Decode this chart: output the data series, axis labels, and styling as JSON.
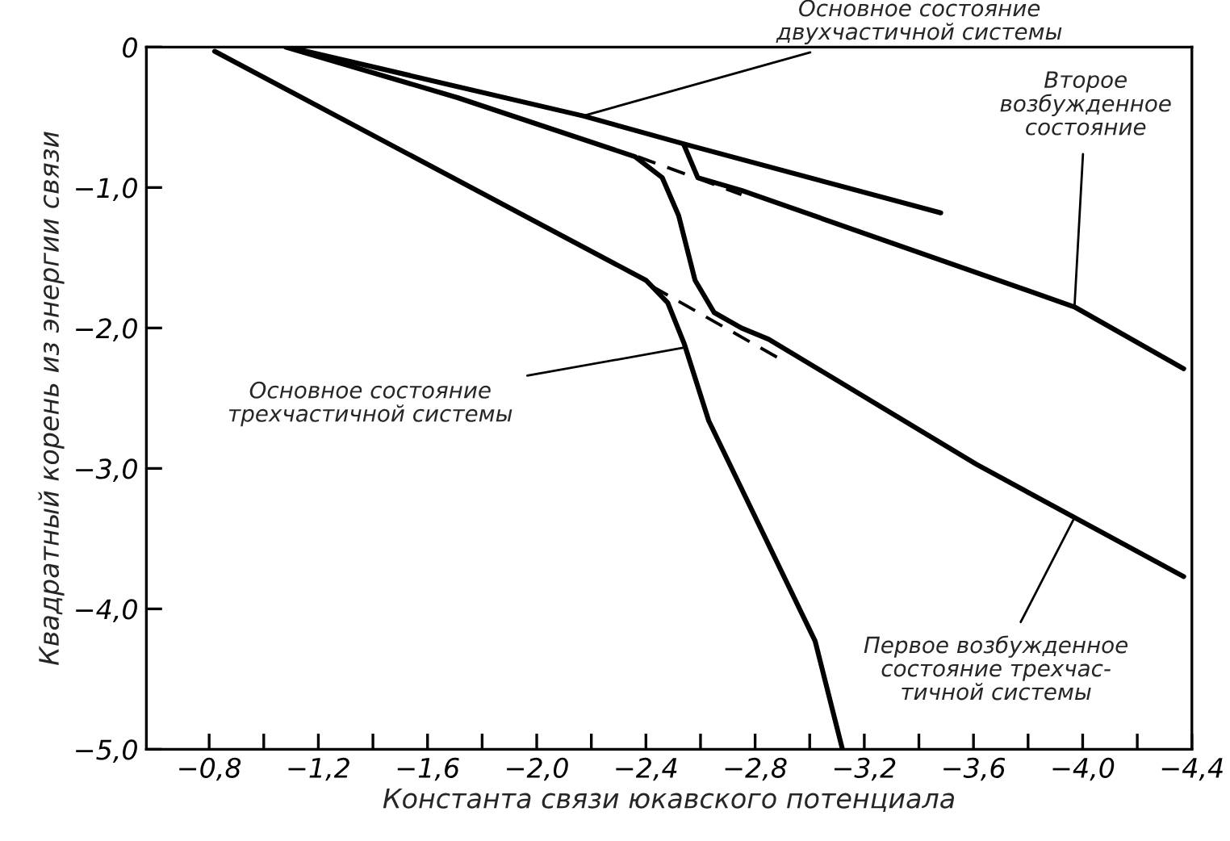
{
  "chart_data": {
    "type": "line",
    "xlabel": "Константа связи юкавского потенциала",
    "ylabel": "Квадратный корень из энергии связи",
    "xlim": [
      -0.57,
      -4.4
    ],
    "ylim": [
      -5.0,
      0
    ],
    "xticks": [
      {
        "value": -0.8,
        "label": "−0,8"
      },
      {
        "value": -1.0,
        "label": null
      },
      {
        "value": -1.2,
        "label": "−1,2"
      },
      {
        "value": -1.4,
        "label": null
      },
      {
        "value": -1.6,
        "label": "−1,6"
      },
      {
        "value": -1.8,
        "label": null
      },
      {
        "value": -2.0,
        "label": "−2,0"
      },
      {
        "value": -2.2,
        "label": null
      },
      {
        "value": -2.4,
        "label": "−2,4"
      },
      {
        "value": -2.6,
        "label": null
      },
      {
        "value": -2.8,
        "label": "−2,8"
      },
      {
        "value": -3.0,
        "label": null
      },
      {
        "value": -3.2,
        "label": "−3,2"
      },
      {
        "value": -3.4,
        "label": null
      },
      {
        "value": -3.6,
        "label": "−3,6"
      },
      {
        "value": -3.8,
        "label": null
      },
      {
        "value": -4.0,
        "label": "−4,0"
      },
      {
        "value": -4.2,
        "label": null
      },
      {
        "value": -4.4,
        "label": "−4,4"
      }
    ],
    "yticks": [
      {
        "value": 0,
        "label": "0"
      },
      {
        "value": -1,
        "label": "−1,0"
      },
      {
        "value": -2,
        "label": "−2,0"
      },
      {
        "value": -3,
        "label": "−3,0"
      },
      {
        "value": -4,
        "label": "−4,0"
      },
      {
        "value": -5,
        "label": "−5,0"
      }
    ],
    "grid": false,
    "legend": false,
    "marker": "none",
    "series": [
      {
        "color": "#000000",
        "line_style": "solid",
        "x": [
          -0.82,
          -2.4,
          -2.48,
          -2.54,
          -2.63,
          -3.02,
          -3.12
        ],
        "values": [
          -0.03,
          -1.66,
          -1.82,
          -2.11,
          -2.66,
          -4.23,
          -5.0
        ]
      },
      {
        "color": "#000000",
        "line_style": "solid",
        "x": [
          -1.08,
          -1.71,
          -2.36,
          -2.46,
          -2.52,
          -2.58,
          -2.65,
          -2.75,
          -2.85,
          -3.61,
          -4.37
        ],
        "values": [
          0,
          -0.36,
          -0.78,
          -0.93,
          -1.2,
          -1.66,
          -1.89,
          -2.0,
          -2.08,
          -2.97,
          -3.77
        ]
      },
      {
        "color": "#000000",
        "line_style": "solid",
        "x": [
          -1.09,
          -2.17,
          -2.54,
          -3.48
        ],
        "values": [
          0,
          -0.49,
          -0.69,
          -1.18
        ]
      },
      {
        "color": "#000000",
        "line_style": "solid",
        "x": [
          -2.54,
          -2.59,
          -2.75,
          -3.97,
          -4.37
        ],
        "values": [
          -0.7,
          -0.93,
          -1.02,
          -1.85,
          -2.29
        ]
      },
      {
        "color": "#000000",
        "line_style": "dashed",
        "x": [
          -2.37,
          -2.75
        ],
        "values": [
          -0.78,
          -1.05
        ]
      },
      {
        "color": "#000000",
        "line_style": "dashed",
        "x": [
          -2.42,
          -2.9
        ],
        "values": [
          -1.7,
          -2.23
        ]
      }
    ],
    "annotations": [
      {
        "text": "Основное состояние\nдвухчастичной системы",
        "x": -2.17,
        "y": -0.49
      },
      {
        "text": "Второе\nвозбужденное\nсостояние",
        "x": -3.97,
        "y": -1.85
      },
      {
        "text": "Основное состояние\nтрехчастичной системы",
        "x": -2.54,
        "y": -2.14
      },
      {
        "text": "Первое возбужденное\nсостояние трехчас-\nтичной системы",
        "x": -3.97,
        "y": -3.35
      }
    ]
  }
}
